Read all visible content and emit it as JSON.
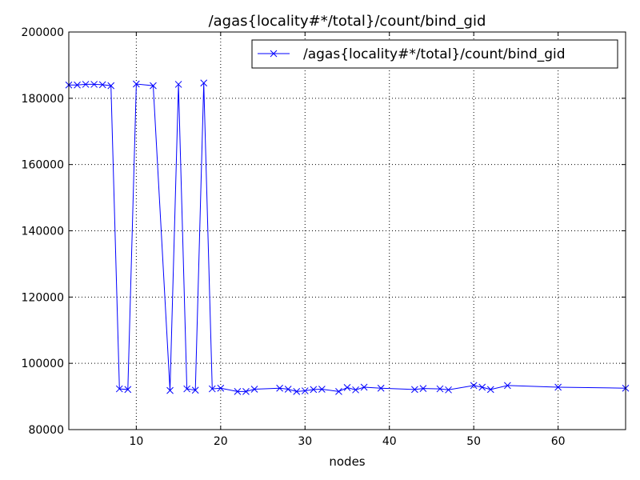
{
  "chart_data": {
    "type": "line",
    "title": "/agas{locality#*/total}/count/bind_gid",
    "xlabel": "nodes",
    "ylabel": "",
    "xlim": [
      2,
      68
    ],
    "ylim": [
      80000,
      200000
    ],
    "x_ticks": [
      10,
      20,
      30,
      40,
      50,
      60
    ],
    "y_ticks": [
      80000,
      100000,
      120000,
      140000,
      160000,
      180000,
      200000
    ],
    "grid": true,
    "legend_position": "top-right",
    "series": [
      {
        "name": "/agas{locality#*/total}/count/bind_gid",
        "color": "#0000ff",
        "marker": "x",
        "x": [
          2,
          3,
          4,
          5,
          6,
          7,
          8,
          9,
          10,
          12,
          14,
          15,
          16,
          17,
          18,
          19,
          20,
          22,
          23,
          24,
          27,
          28,
          29,
          30,
          31,
          32,
          34,
          35,
          36,
          37,
          39,
          43,
          44,
          46,
          47,
          50,
          51,
          52,
          54,
          60,
          68
        ],
        "y": [
          184000,
          184000,
          184200,
          184200,
          184100,
          183800,
          92300,
          92100,
          184300,
          183800,
          91800,
          184200,
          92300,
          91900,
          184600,
          92300,
          92500,
          91500,
          91500,
          92200,
          92500,
          92200,
          91500,
          91700,
          92100,
          92200,
          91500,
          92700,
          92000,
          92800,
          92500,
          92100,
          92400,
          92300,
          92000,
          93300,
          92800,
          92100,
          93300,
          92800,
          92500
        ]
      }
    ]
  }
}
